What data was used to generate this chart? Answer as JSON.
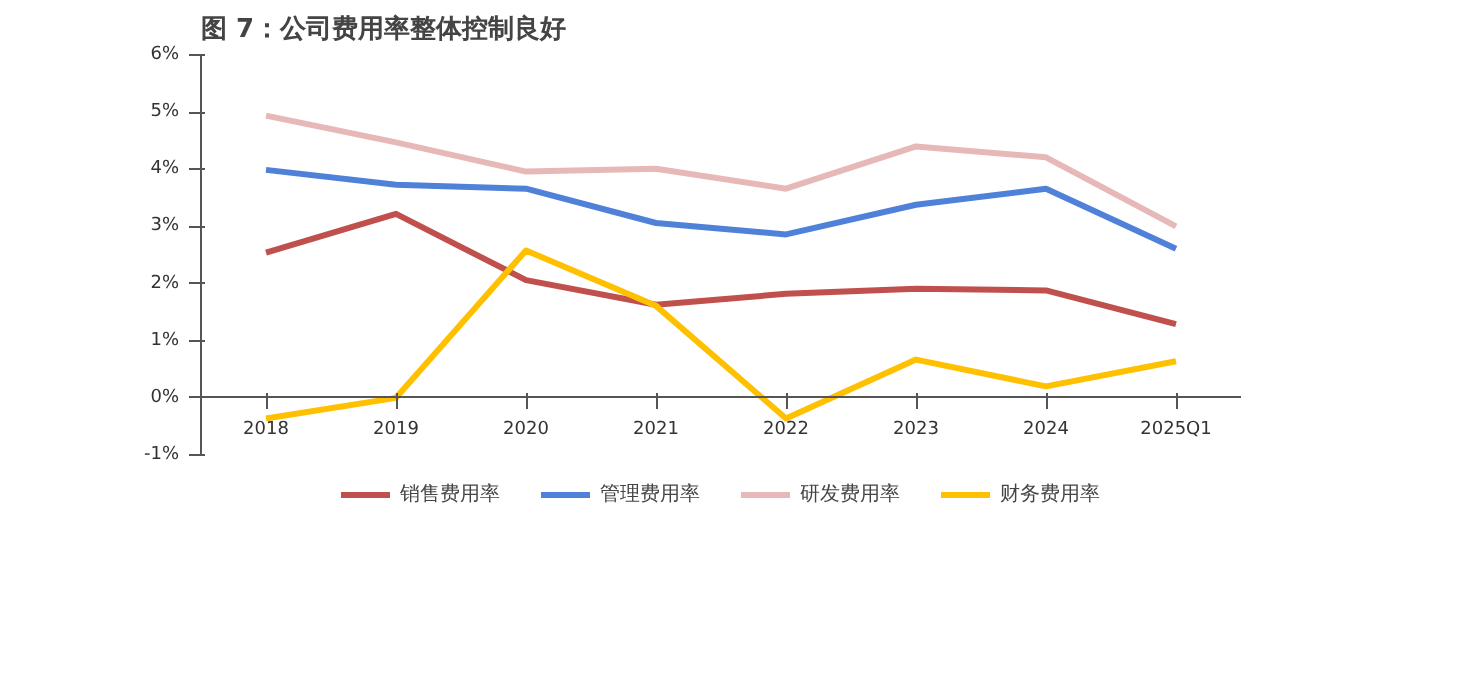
{
  "chart_data": {
    "type": "line",
    "title": "图 7：公司费用率整体控制良好",
    "categories": [
      "2018",
      "2019",
      "2020",
      "2021",
      "2022",
      "2023",
      "2024",
      "2025Q1"
    ],
    "series": [
      {
        "name": "销售费用率",
        "color": "#c0504d",
        "values": [
          2.54,
          3.22,
          2.06,
          1.63,
          1.82,
          1.91,
          1.88,
          1.29
        ]
      },
      {
        "name": "管理费用率",
        "color": "#4f81d9",
        "values": [
          3.99,
          3.73,
          3.66,
          3.06,
          2.86,
          3.38,
          3.66,
          2.61
        ]
      },
      {
        "name": "研发费用率",
        "color": "#e6b9b8",
        "values": [
          4.94,
          4.47,
          3.96,
          4.01,
          3.66,
          4.4,
          4.21,
          3.0
        ]
      },
      {
        "name": "财务费用率",
        "color": "#ffc000",
        "values": [
          -0.36,
          0.0,
          2.58,
          1.61,
          -0.36,
          0.67,
          0.2,
          0.64
        ]
      }
    ],
    "ylim": [
      -1,
      6
    ],
    "yticks": [
      {
        "value": -1,
        "label": "-1%"
      },
      {
        "value": 0,
        "label": "0%"
      },
      {
        "value": 1,
        "label": "1%"
      },
      {
        "value": 2,
        "label": "2%"
      },
      {
        "value": 3,
        "label": "3%"
      },
      {
        "value": 4,
        "label": "4%"
      },
      {
        "value": 5,
        "label": "5%"
      },
      {
        "value": 6,
        "label": "6%"
      }
    ],
    "grid": false,
    "legend": "bottom",
    "marker": "none",
    "line_style": "solid"
  }
}
